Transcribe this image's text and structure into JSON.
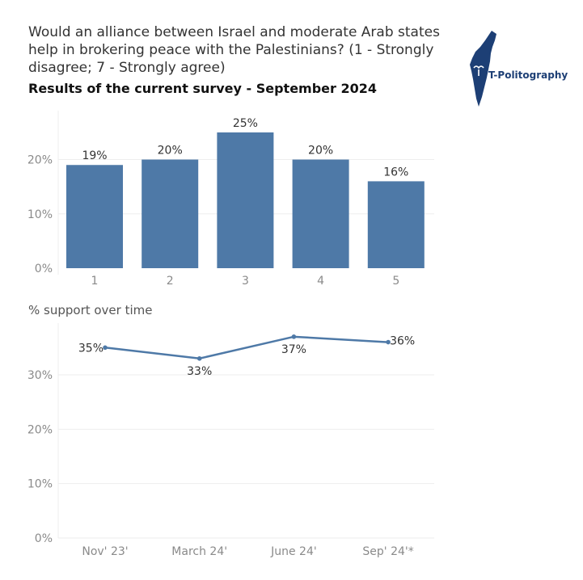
{
  "title": "Would an alliance between Israel and moderate Arab states help in brokering peace with the Palestinians? (1 - Strongly disagree; 7 - Strongly agree)",
  "subtitle": "Results of the current survey - September 2024",
  "logo": {
    "text": "T-Politography",
    "icon": "israel-map-icon"
  },
  "colors": {
    "bar": "#4e79a7",
    "line": "#4e79a7",
    "grid": "#eeeeee"
  },
  "chart_data": [
    {
      "type": "bar",
      "categories": [
        "1",
        "2",
        "3",
        "4",
        "5"
      ],
      "values": [
        19,
        20,
        25,
        20,
        16
      ],
      "value_labels": [
        "19%",
        "20%",
        "25%",
        "20%",
        "16%"
      ],
      "title": "",
      "ylim": [
        0,
        29
      ],
      "yticks": [
        0,
        10,
        20
      ],
      "ytick_labels": [
        "0%",
        "10%",
        "20%"
      ],
      "grid": true
    },
    {
      "type": "line",
      "title": "% support over time",
      "x": [
        "Nov' 23'",
        "March 24'",
        "June 24'",
        "Sep' 24'*"
      ],
      "values": [
        35,
        33,
        37,
        36
      ],
      "value_labels": [
        "35%",
        "33%",
        "37%",
        "36%"
      ],
      "ylim": [
        0,
        39.5
      ],
      "yticks": [
        0,
        10,
        20,
        30
      ],
      "ytick_labels": [
        "0%",
        "10%",
        "20%",
        "30%"
      ],
      "grid": true
    }
  ]
}
